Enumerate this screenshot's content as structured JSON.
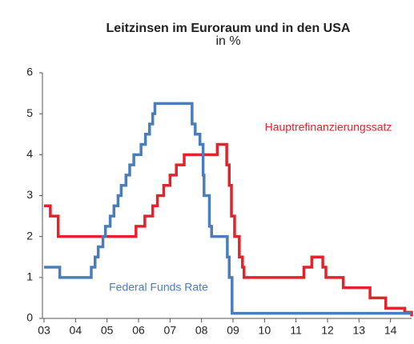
{
  "chart_data": {
    "type": "step-line",
    "title": "Leitzinsen im Euroraum und in den USA",
    "subtitle": "in %",
    "step": "post",
    "xlim": [
      2003,
      2014.67
    ],
    "xticks": [
      {
        "value": 2003,
        "label": "03"
      },
      {
        "value": 2004,
        "label": "04"
      },
      {
        "value": 2005,
        "label": "05"
      },
      {
        "value": 2006,
        "label": "06"
      },
      {
        "value": 2007,
        "label": "07"
      },
      {
        "value": 2008,
        "label": "08"
      },
      {
        "value": 2009,
        "label": "09"
      },
      {
        "value": 2010,
        "label": "10"
      },
      {
        "value": 2011,
        "label": "11"
      },
      {
        "value": 2012,
        "label": "12"
      },
      {
        "value": 2013,
        "label": "13"
      },
      {
        "value": 2014,
        "label": "14"
      }
    ],
    "ylim": [
      0,
      6
    ],
    "yticks": [
      0,
      1,
      2,
      3,
      4,
      5,
      6
    ],
    "grid": false,
    "series": [
      {
        "name": "Hauptrefinanzierungssatz",
        "color": "#e3232b",
        "x": [
          2003.0,
          2003.2,
          2003.45,
          2005.92,
          2006.2,
          2006.45,
          2006.6,
          2006.8,
          2007.0,
          2007.2,
          2007.45,
          2008.5,
          2008.8,
          2008.88,
          2008.95,
          2009.05,
          2009.2,
          2009.3,
          2009.35,
          2011.25,
          2011.5,
          2011.85,
          2011.95,
          2012.5,
          2013.35,
          2013.85,
          2014.45,
          2014.67
        ],
        "values": [
          2.75,
          2.5,
          2.0,
          2.25,
          2.5,
          2.75,
          3.0,
          3.25,
          3.5,
          3.75,
          4.0,
          4.25,
          3.75,
          3.25,
          2.5,
          2.0,
          1.5,
          1.25,
          1.0,
          1.25,
          1.5,
          1.25,
          1.0,
          0.75,
          0.5,
          0.25,
          0.15,
          0.05
        ]
      },
      {
        "name": "Federal Funds Rate",
        "color": "#4a7ebb",
        "x": [
          2003.0,
          2003.5,
          2004.5,
          2004.62,
          2004.72,
          2004.87,
          2004.95,
          2005.1,
          2005.22,
          2005.35,
          2005.45,
          2005.6,
          2005.72,
          2005.85,
          2006.08,
          2006.22,
          2006.35,
          2006.45,
          2006.52,
          2007.7,
          2007.8,
          2007.95,
          2008.05,
          2008.08,
          2008.25,
          2008.32,
          2008.82,
          2008.88,
          2008.97,
          2014.67
        ],
        "values": [
          1.25,
          1.0,
          1.25,
          1.5,
          1.75,
          2.0,
          2.25,
          2.5,
          2.75,
          3.0,
          3.25,
          3.5,
          3.75,
          4.0,
          4.25,
          4.5,
          4.75,
          5.0,
          5.25,
          4.75,
          4.5,
          4.25,
          3.5,
          3.0,
          2.25,
          2.0,
          1.5,
          1.0,
          0.125,
          0.125
        ]
      }
    ]
  }
}
